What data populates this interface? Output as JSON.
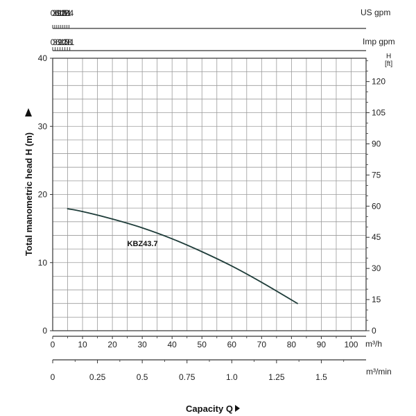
{
  "chart_data": {
    "type": "line",
    "xlabel": "Capacity Q",
    "ylabel": "Total manometric head H (m)",
    "x_unit": "m³/h",
    "y_unit": "H [ft]",
    "xlim": [
      0,
      105
    ],
    "ylim": [
      0,
      40
    ],
    "grid": true,
    "x_ticks": [
      0,
      10,
      20,
      30,
      40,
      50,
      60,
      70,
      80,
      90,
      100
    ],
    "y_ticks": [
      0,
      10,
      20,
      30,
      40
    ],
    "secondary_axes": {
      "us_gpm": {
        "unit": "US gpm",
        "ticks": [
          "0",
          "3",
          "6",
          "9",
          "12",
          "15",
          "18",
          "21",
          "24"
        ]
      },
      "imp_gpm": {
        "unit": "Imp gpm",
        "ticks": [
          "0",
          "3",
          "6",
          "9",
          "12",
          "15",
          "18",
          "21"
        ]
      },
      "m3_min": {
        "unit": "m³/min",
        "ticks": [
          "0",
          "0.25",
          "0.5",
          "0.75",
          "1.0",
          "1.25",
          "1.5"
        ]
      },
      "ft": {
        "unit": "H [ft]",
        "ticks": [
          "0",
          "15",
          "30",
          "45",
          "60",
          "75",
          "90",
          "105",
          "120"
        ]
      }
    },
    "series": [
      {
        "name": "KBZ43.7",
        "color": "#1f3d3a",
        "x": [
          5,
          10,
          20,
          30,
          40,
          50,
          60,
          70,
          82
        ],
        "y": [
          17.9,
          17.5,
          16.4,
          15.1,
          13.5,
          11.6,
          9.5,
          7.1,
          4.0
        ]
      }
    ]
  }
}
